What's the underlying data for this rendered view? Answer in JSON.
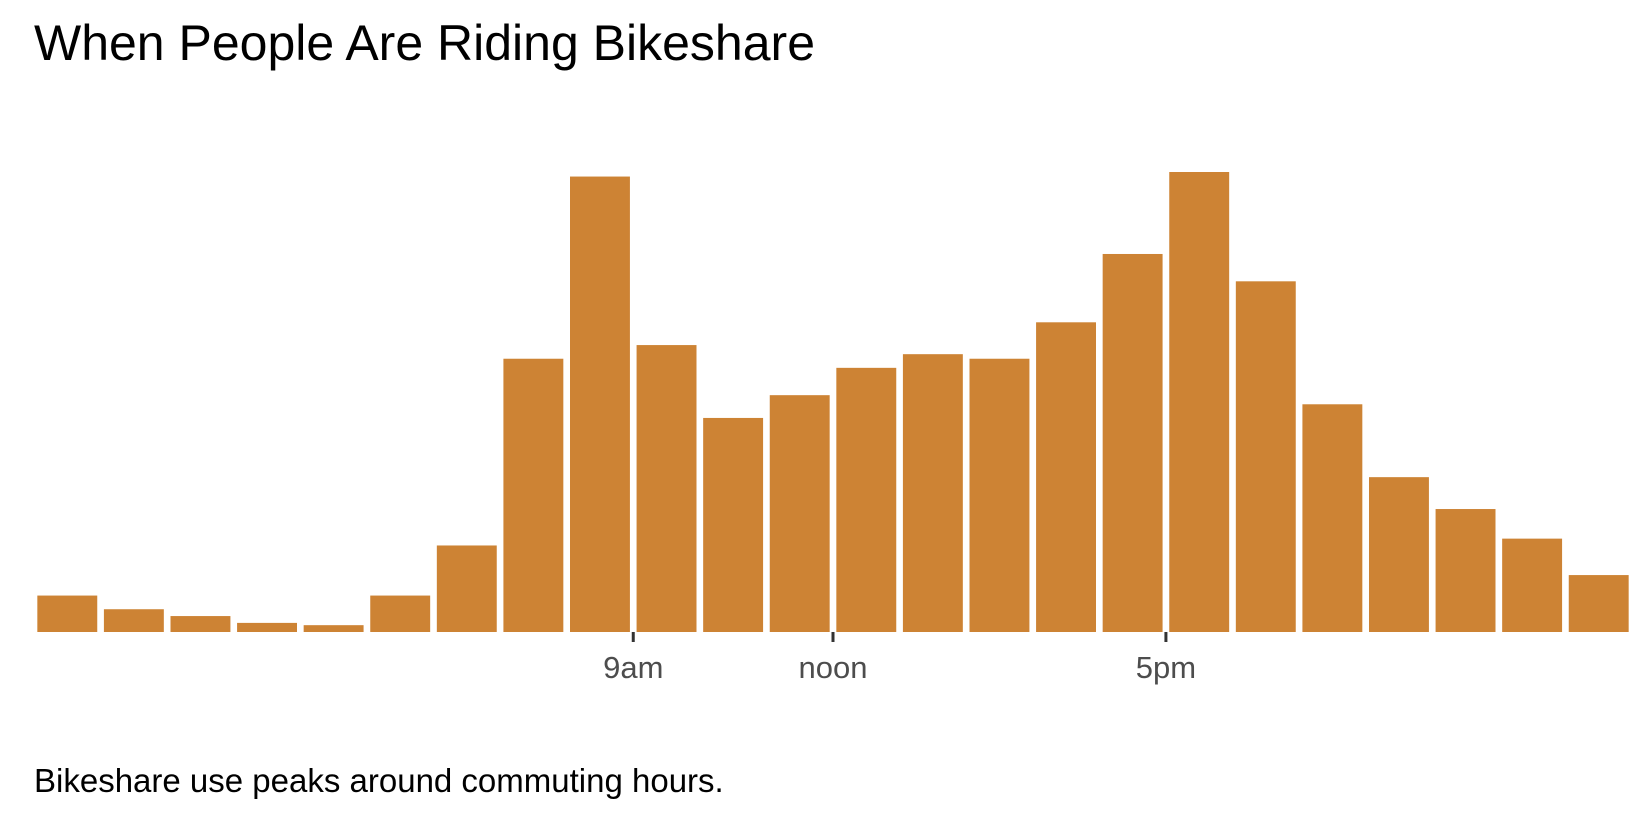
{
  "chart_data": {
    "type": "bar",
    "title": "When People Are Riding Bikeshare",
    "caption": "Bikeshare use peaks around commuting hours.",
    "xlabel": "",
    "ylabel": "",
    "categories": [
      0,
      1,
      2,
      3,
      4,
      5,
      6,
      7,
      8,
      9,
      10,
      11,
      12,
      13,
      14,
      15,
      16,
      17,
      18,
      19,
      20,
      21,
      22,
      23
    ],
    "values": [
      8,
      5,
      3.5,
      2,
      1.5,
      8,
      19,
      60,
      100,
      63,
      47,
      52,
      58,
      61,
      60,
      68,
      83,
      101,
      77,
      50,
      34,
      27,
      20.5,
      12.5
    ],
    "ylim": [
      0,
      101
    ],
    "grid": false,
    "legend": "none",
    "bar_color": "#cd8334",
    "x_ticks": [
      {
        "hour": 9,
        "label": "9am"
      },
      {
        "hour": 12,
        "label": "noon"
      },
      {
        "hour": 17,
        "label": "5pm"
      }
    ],
    "tick_color": "#333333",
    "tick_label_color": "#4d4d4d"
  }
}
